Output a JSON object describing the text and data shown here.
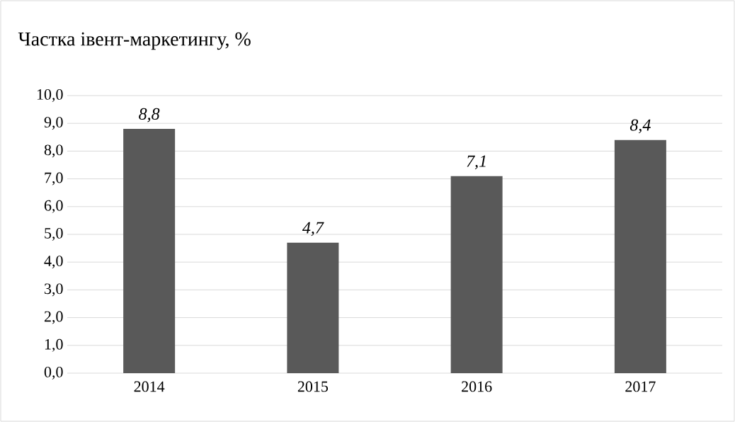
{
  "chart_data": {
    "type": "bar",
    "title": "Частка івент-маркетингу, %",
    "categories": [
      "2014",
      "2015",
      "2016",
      "2017"
    ],
    "values": [
      8.8,
      4.7,
      7.1,
      8.4
    ],
    "value_labels": [
      "8,8",
      "4,7",
      "7,1",
      "8,4"
    ],
    "color": "#595959",
    "ylim": [
      0,
      10
    ],
    "yticks": [
      {
        "value": 0,
        "label": "0,0"
      },
      {
        "value": 1,
        "label": "1,0"
      },
      {
        "value": 2,
        "label": "2,0"
      },
      {
        "value": 3,
        "label": "3,0"
      },
      {
        "value": 4,
        "label": "4,0"
      },
      {
        "value": 5,
        "label": "5,0"
      },
      {
        "value": 6,
        "label": "6,0"
      },
      {
        "value": 7,
        "label": "7,0"
      },
      {
        "value": 8,
        "label": "8,0"
      },
      {
        "value": 9,
        "label": "9,0"
      },
      {
        "value": 10,
        "label": "10,0"
      }
    ],
    "grid": "y"
  }
}
